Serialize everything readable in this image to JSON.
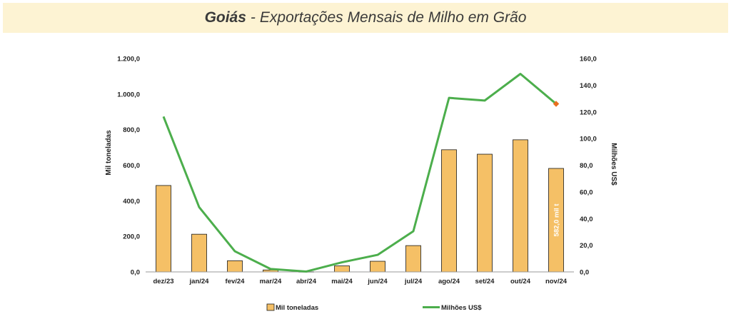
{
  "header": {
    "title_strong": "Goiás",
    "title_sep": "-",
    "title_rest": "Exportações Mensais de Milho em Grão"
  },
  "chart_data": {
    "type": "bar",
    "categories": [
      "dez/23",
      "jan/24",
      "fev/24",
      "mar/24",
      "abr/24",
      "mai/24",
      "jun/24",
      "jul/24",
      "ago/24",
      "set/24",
      "out/24",
      "nov/24"
    ],
    "series": [
      {
        "name": "Mil toneladas",
        "type": "bar",
        "axis": "left",
        "color": "#f5c066",
        "values": [
          486,
          212,
          63,
          11,
          1,
          34,
          60,
          148,
          687,
          662,
          743,
          582
        ]
      },
      {
        "name": "Milhões US$",
        "type": "line",
        "axis": "right",
        "color": "#4cae4c",
        "values": [
          116.5,
          48.5,
          15.5,
          2.2,
          0.3,
          7.2,
          12.8,
          30.5,
          130.5,
          128.5,
          148.5,
          126
        ]
      }
    ],
    "ylabel_left": "Mil toneladas",
    "ylabel_right": "Milhões US$",
    "ylim_left": [
      0,
      1200
    ],
    "ylim_right": [
      0,
      160
    ],
    "yticks_left": [
      "0,0",
      "200,0",
      "400,0",
      "600,0",
      "800,0",
      "1.000,0",
      "1.200,0"
    ],
    "yticks_right": [
      "0,0",
      "20,0",
      "40,0",
      "60,0",
      "80,0",
      "100,0",
      "120,0",
      "140,0",
      "160,0"
    ],
    "data_label": {
      "index": 11,
      "text": "582,0 mil t"
    },
    "last_point_marker_color": "#e8701f",
    "grid": false,
    "legend_position": "bottom"
  }
}
